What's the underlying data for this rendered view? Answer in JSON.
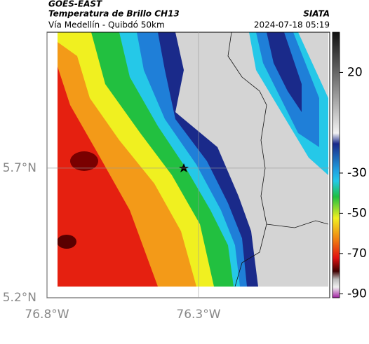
{
  "header": {
    "title": "GOES-EAST",
    "subtitle": "Temperatura de Brillo CH13",
    "source": "SIATA",
    "route": "Vía Medellín - Quibdó 50km",
    "datetime": "2024-07-18 05:19"
  },
  "map": {
    "lonlim": [
      -76.8,
      -75.867
    ],
    "latlim": [
      5.2,
      6.224
    ],
    "lon_ticks": [
      {
        "value": -76.8,
        "label": "76.8°W"
      },
      {
        "value": -76.3,
        "label": "76.3°W"
      }
    ],
    "lat_ticks": [
      {
        "value": 5.7,
        "label": "5.7°N"
      },
      {
        "value": 5.2,
        "label": "5.2°N"
      }
    ]
  },
  "colorbar": {
    "lim": [
      40,
      -92
    ],
    "ticks": [
      20,
      -30,
      -50,
      -70,
      -90
    ]
  }
}
